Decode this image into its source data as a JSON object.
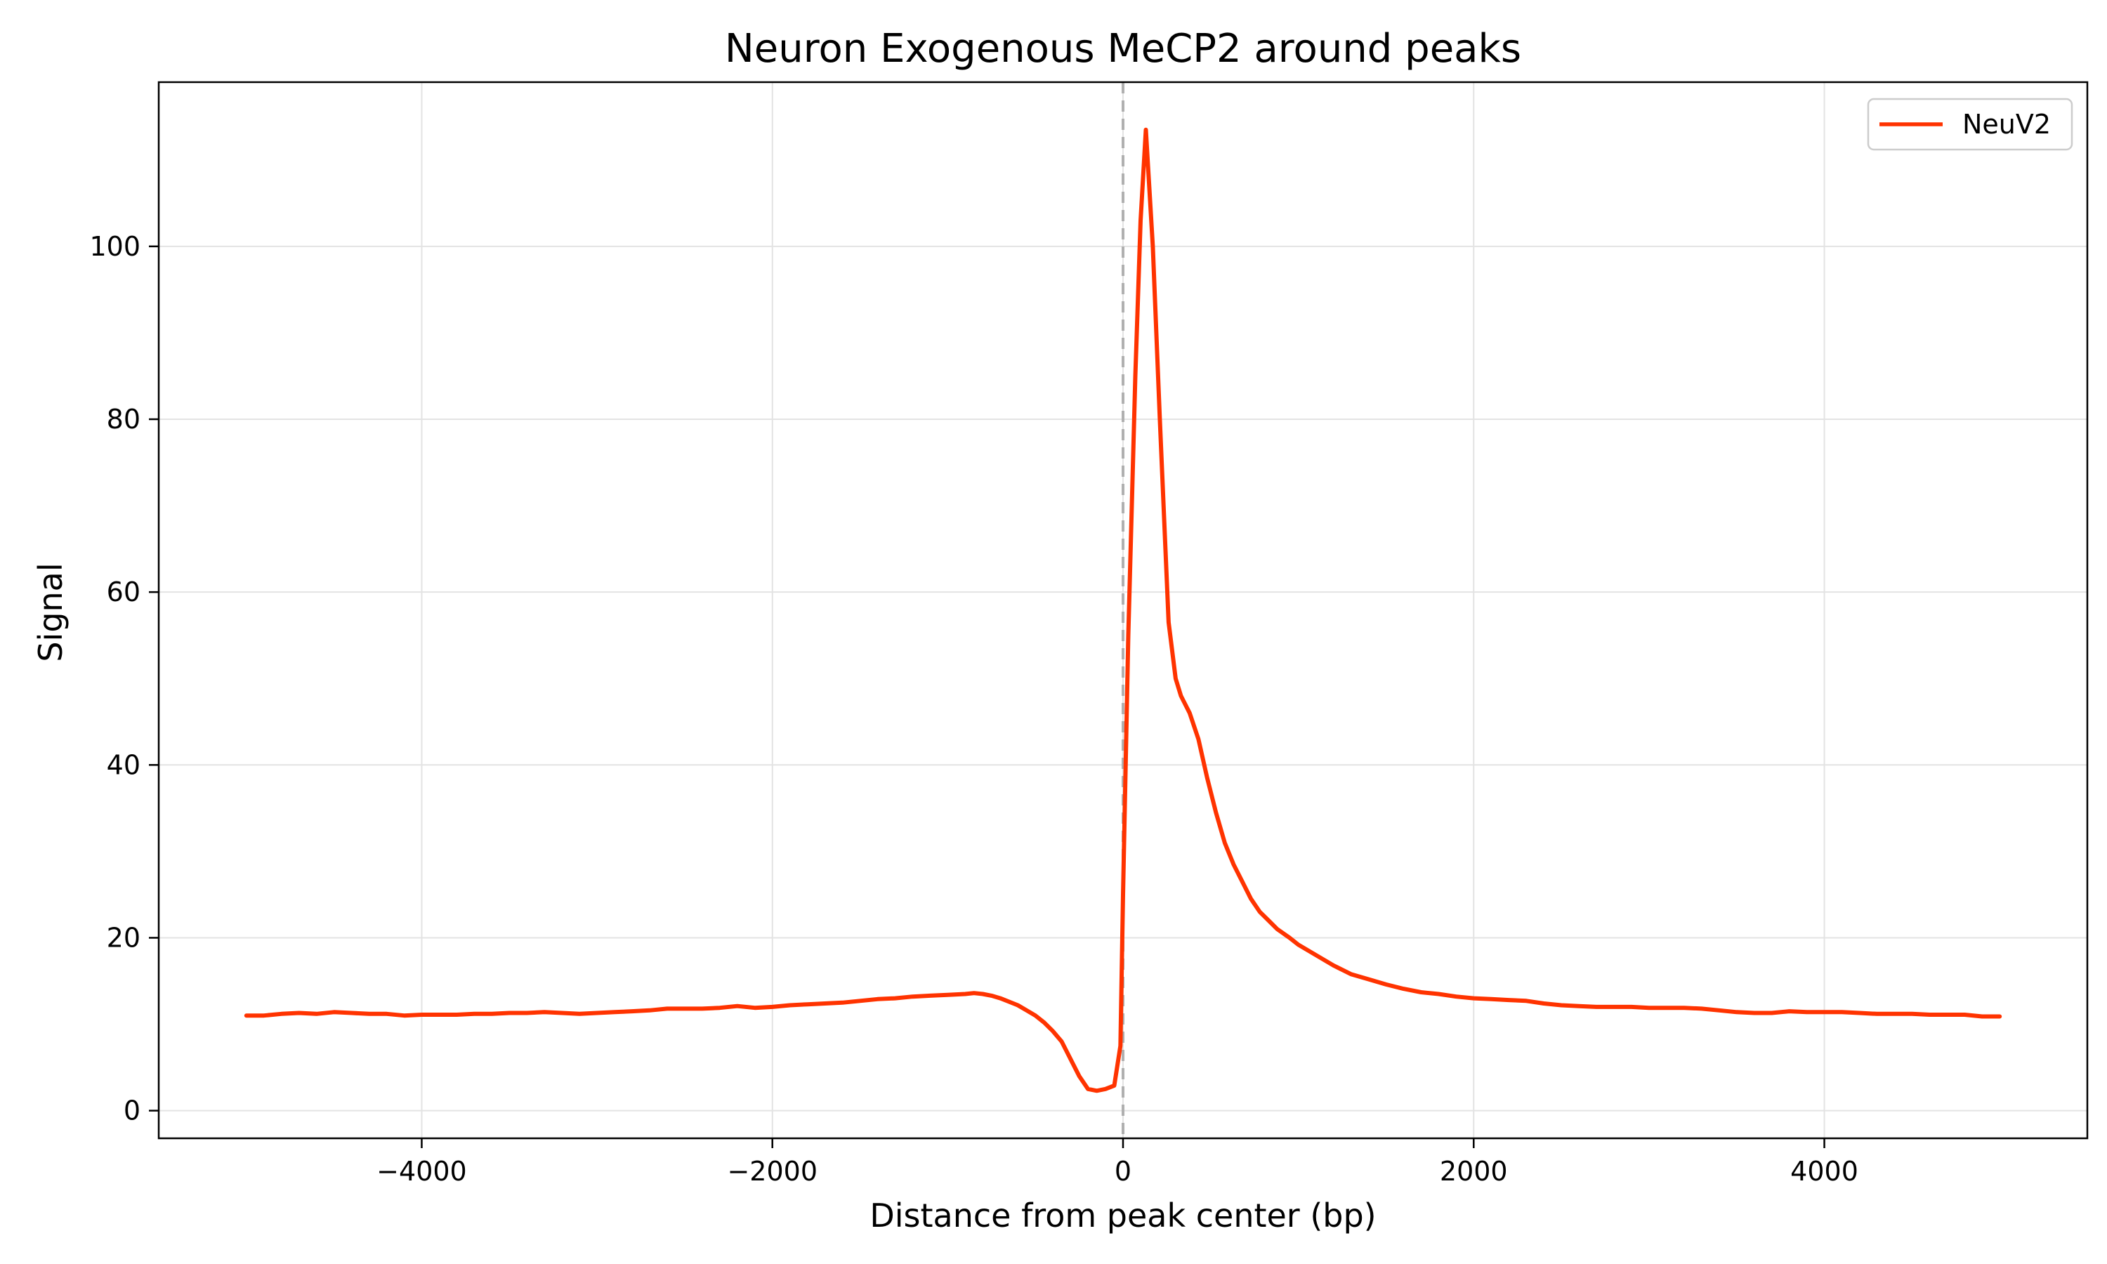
{
  "chart_data": {
    "type": "line",
    "title": "Neuron Exogenous MeCP2 around peaks",
    "xlabel": "Distance from peak center (bp)",
    "ylabel": "Signal",
    "xlim": [
      -5500,
      5500
    ],
    "ylim": [
      -3.2,
      119
    ],
    "x_ticks": [
      -4000,
      -2000,
      0,
      2000,
      4000
    ],
    "x_tick_labels": [
      "−4000",
      "−2000",
      "0",
      "2000",
      "4000"
    ],
    "y_ticks": [
      0,
      20,
      40,
      60,
      80,
      100
    ],
    "y_tick_labels": [
      "0",
      "20",
      "40",
      "60",
      "80",
      "100"
    ],
    "grid": true,
    "legend_position": "top-right",
    "reference_line": {
      "x": 0,
      "style": "dashed",
      "color": "#b0b0b0"
    },
    "series": [
      {
        "name": "NeuV2",
        "color": "#ff3300",
        "points": [
          [
            -5000,
            11.0
          ],
          [
            -4900,
            11.0
          ],
          [
            -4800,
            11.2
          ],
          [
            -4700,
            11.3
          ],
          [
            -4600,
            11.2
          ],
          [
            -4500,
            11.4
          ],
          [
            -4400,
            11.3
          ],
          [
            -4300,
            11.2
          ],
          [
            -4200,
            11.2
          ],
          [
            -4100,
            11.0
          ],
          [
            -4000,
            11.1
          ],
          [
            -3900,
            11.1
          ],
          [
            -3800,
            11.1
          ],
          [
            -3700,
            11.2
          ],
          [
            -3600,
            11.2
          ],
          [
            -3500,
            11.3
          ],
          [
            -3400,
            11.3
          ],
          [
            -3300,
            11.4
          ],
          [
            -3200,
            11.3
          ],
          [
            -3100,
            11.2
          ],
          [
            -3000,
            11.3
          ],
          [
            -2900,
            11.4
          ],
          [
            -2800,
            11.5
          ],
          [
            -2700,
            11.6
          ],
          [
            -2600,
            11.8
          ],
          [
            -2500,
            11.8
          ],
          [
            -2400,
            11.8
          ],
          [
            -2300,
            11.9
          ],
          [
            -2200,
            12.1
          ],
          [
            -2100,
            11.9
          ],
          [
            -2000,
            12.0
          ],
          [
            -1900,
            12.2
          ],
          [
            -1800,
            12.3
          ],
          [
            -1700,
            12.4
          ],
          [
            -1600,
            12.5
          ],
          [
            -1500,
            12.7
          ],
          [
            -1400,
            12.9
          ],
          [
            -1300,
            13.0
          ],
          [
            -1200,
            13.2
          ],
          [
            -1100,
            13.3
          ],
          [
            -1000,
            13.4
          ],
          [
            -900,
            13.5
          ],
          [
            -850,
            13.6
          ],
          [
            -800,
            13.5
          ],
          [
            -750,
            13.3
          ],
          [
            -700,
            13.0
          ],
          [
            -650,
            12.6
          ],
          [
            -600,
            12.2
          ],
          [
            -550,
            11.6
          ],
          [
            -500,
            11.0
          ],
          [
            -450,
            10.2
          ],
          [
            -400,
            9.2
          ],
          [
            -350,
            8.0
          ],
          [
            -300,
            6.0
          ],
          [
            -250,
            4.0
          ],
          [
            -200,
            2.5
          ],
          [
            -150,
            2.3
          ],
          [
            -100,
            2.5
          ],
          [
            -50,
            2.9
          ],
          [
            -15,
            7.5
          ],
          [
            0,
            25.0
          ],
          [
            30,
            55.0
          ],
          [
            70,
            85.0
          ],
          [
            100,
            103.0
          ],
          [
            130,
            113.5
          ],
          [
            170,
            100.0
          ],
          [
            210,
            80.0
          ],
          [
            260,
            56.5
          ],
          [
            300,
            50.0
          ],
          [
            330,
            48.0
          ],
          [
            380,
            46.0
          ],
          [
            430,
            43.0
          ],
          [
            480,
            38.5
          ],
          [
            530,
            34.5
          ],
          [
            580,
            31.0
          ],
          [
            630,
            28.5
          ],
          [
            680,
            26.5
          ],
          [
            730,
            24.5
          ],
          [
            780,
            23.0
          ],
          [
            830,
            22.0
          ],
          [
            880,
            21.0
          ],
          [
            950,
            20.0
          ],
          [
            1000,
            19.2
          ],
          [
            1100,
            18.0
          ],
          [
            1200,
            16.8
          ],
          [
            1300,
            15.8
          ],
          [
            1400,
            15.2
          ],
          [
            1500,
            14.6
          ],
          [
            1600,
            14.1
          ],
          [
            1700,
            13.7
          ],
          [
            1800,
            13.5
          ],
          [
            1900,
            13.2
          ],
          [
            2000,
            13.0
          ],
          [
            2100,
            12.9
          ],
          [
            2200,
            12.8
          ],
          [
            2300,
            12.7
          ],
          [
            2400,
            12.4
          ],
          [
            2500,
            12.2
          ],
          [
            2600,
            12.1
          ],
          [
            2700,
            12.0
          ],
          [
            2800,
            12.0
          ],
          [
            2900,
            12.0
          ],
          [
            3000,
            11.9
          ],
          [
            3100,
            11.9
          ],
          [
            3200,
            11.9
          ],
          [
            3300,
            11.8
          ],
          [
            3400,
            11.6
          ],
          [
            3500,
            11.4
          ],
          [
            3600,
            11.3
          ],
          [
            3700,
            11.3
          ],
          [
            3800,
            11.5
          ],
          [
            3900,
            11.4
          ],
          [
            4000,
            11.4
          ],
          [
            4100,
            11.4
          ],
          [
            4200,
            11.3
          ],
          [
            4300,
            11.2
          ],
          [
            4400,
            11.2
          ],
          [
            4500,
            11.2
          ],
          [
            4600,
            11.1
          ],
          [
            4700,
            11.1
          ],
          [
            4800,
            11.1
          ],
          [
            4900,
            10.9
          ],
          [
            5000,
            10.9
          ]
        ]
      }
    ]
  }
}
